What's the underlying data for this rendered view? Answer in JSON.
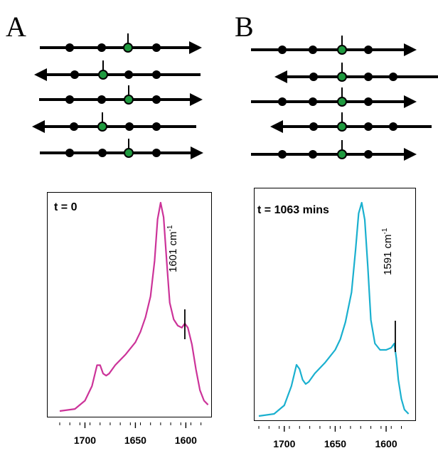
{
  "panels": [
    {
      "letter": "A",
      "time_label": "t = 0",
      "peak_label": "1601 cm",
      "peak_sup": "-1"
    },
    {
      "letter": "B",
      "time_label": "t = 1063 mins",
      "peak_label": "1591 cm",
      "peak_sup": "-1"
    }
  ],
  "colors": {
    "panel_a_trace": "#cc3399",
    "panel_b_trace": "#1ab0cf",
    "green_marker": "#1f9a3f"
  },
  "chart_data": [
    {
      "type": "line",
      "title": "t = 0",
      "xlabel": "",
      "ylabel": "",
      "xlim": [
        1725,
        1577
      ],
      "x_reversed": true,
      "xticks": [
        1700,
        1650,
        1600
      ],
      "annotation": {
        "text": "1601 cm-1",
        "x": 1601
      },
      "series": [
        {
          "x": [
            1725,
            1710,
            1700,
            1693,
            1688,
            1685,
            1682,
            1679,
            1676,
            1670,
            1660,
            1650,
            1645,
            1640,
            1635,
            1631,
            1628,
            1625,
            1622,
            1619,
            1616,
            1612,
            1608,
            1604,
            1601,
            1598,
            1594,
            1590,
            1586,
            1582,
            1578
          ],
          "y": [
            0.0,
            0.01,
            0.05,
            0.12,
            0.22,
            0.22,
            0.18,
            0.17,
            0.18,
            0.22,
            0.27,
            0.33,
            0.38,
            0.45,
            0.55,
            0.72,
            0.92,
            1.0,
            0.93,
            0.72,
            0.52,
            0.44,
            0.41,
            0.4,
            0.42,
            0.4,
            0.32,
            0.2,
            0.1,
            0.05,
            0.03
          ]
        }
      ]
    },
    {
      "type": "line",
      "title": "t = 1063 mins",
      "xlabel": "",
      "ylabel": "",
      "xlim": [
        1725,
        1577
      ],
      "x_reversed": true,
      "xticks": [
        1700,
        1650,
        1600
      ],
      "annotation": {
        "text": "1591 cm-1",
        "x": 1591
      },
      "series": [
        {
          "x": [
            1725,
            1710,
            1700,
            1693,
            1688,
            1685,
            1682,
            1679,
            1676,
            1670,
            1660,
            1650,
            1645,
            1640,
            1634,
            1630,
            1627,
            1624,
            1621,
            1618,
            1615,
            1611,
            1606,
            1600,
            1595,
            1592,
            1590,
            1588,
            1585,
            1582,
            1578
          ],
          "y": [
            0.0,
            0.01,
            0.05,
            0.14,
            0.24,
            0.22,
            0.17,
            0.15,
            0.16,
            0.2,
            0.25,
            0.31,
            0.36,
            0.44,
            0.58,
            0.78,
            0.95,
            1.0,
            0.92,
            0.7,
            0.45,
            0.34,
            0.31,
            0.31,
            0.32,
            0.34,
            0.27,
            0.17,
            0.08,
            0.03,
            0.01
          ]
        }
      ]
    }
  ]
}
